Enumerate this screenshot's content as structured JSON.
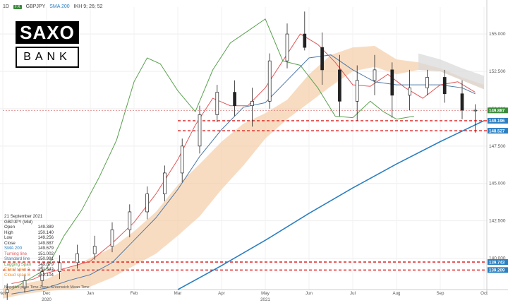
{
  "header": {
    "interval": "1D",
    "badge": "FX",
    "symbol": "GBPJPY",
    "sma_label": "SMA 200",
    "ikh_label": "IKH 9; 26; 52"
  },
  "logo": {
    "top": "SAXO",
    "bottom": "BANK"
  },
  "info": {
    "date": "21 September 2021",
    "instrument": "GBPJPY (Mid)",
    "rows": [
      {
        "label": "Open",
        "value": "149.389",
        "color": "#333333"
      },
      {
        "label": "High",
        "value": "150.140",
        "color": "#333333"
      },
      {
        "label": "Low",
        "value": "149.256",
        "color": "#333333"
      },
      {
        "label": "Close",
        "value": "149.887",
        "color": "#333333"
      },
      {
        "label": "SMA 200",
        "value": "149.679",
        "color": "#2a7fc1"
      },
      {
        "label": "Turning line",
        "value": "151.002",
        "color": "#e15759"
      },
      {
        "label": "Standard line",
        "value": "150.991",
        "color": "#4e79a7"
      },
      {
        "label": "Lagging Span",
        "value": "149.879",
        "color": "#59a14f"
      },
      {
        "label": "Cloud span A",
        "value": "151.542",
        "color": "#f28e2b"
      },
      {
        "label": "Cloud span B",
        "value": "152.104",
        "color": "#f28e2b"
      }
    ],
    "footer": "Negative price   Time Zone: Greenwich Mean Time"
  },
  "chart_data": {
    "type": "candlestick",
    "symbol": "GBPJPY",
    "x_ticks": [
      "Nov",
      "Dec",
      "Jan",
      "Feb",
      "Mar",
      "Apr",
      "May",
      "Jun",
      "Jul",
      "Aug",
      "Sep",
      "Oct"
    ],
    "year_labels": [
      {
        "after": "Dec",
        "label": "2020"
      },
      {
        "after": "May",
        "label": "2021"
      }
    ],
    "y_ticks": [
      140.0,
      142.5,
      145.0,
      147.5,
      150.0,
      152.5,
      155.0
    ],
    "y_tick_labels": [
      "140.000",
      "142.500",
      "145.000",
      "147.500",
      "150.000",
      "152.500",
      "155.000"
    ],
    "ylim": [
      137.9,
      156.8
    ],
    "tags": [
      {
        "value": 149.887,
        "label": "149.887",
        "color": "#3a8a3a"
      },
      {
        "value": 149.196,
        "label": "149.196",
        "color": "#2a7fc1"
      },
      {
        "value": 148.527,
        "label": "148.527",
        "color": "#2a7fc1"
      },
      {
        "value": 139.743,
        "label": "139.743",
        "color": "#2a7fc1"
      },
      {
        "value": 139.209,
        "label": "139.209",
        "color": "#2a7fc1"
      }
    ],
    "horizontal_lines": [
      {
        "value": 149.196,
        "from_month": 4,
        "style": "dashed",
        "color": "#e02020"
      },
      {
        "value": 148.527,
        "from_month": 4,
        "style": "dashed",
        "color": "#e02020"
      },
      {
        "value": 139.743,
        "from_month": 0,
        "style": "dashed",
        "color": "#e02020"
      },
      {
        "value": 139.209,
        "from_month": 0,
        "style": "dashed",
        "color": "#e02020"
      },
      {
        "value": 149.887,
        "from_month": 0,
        "style": "dotted",
        "color": "#e08080"
      }
    ],
    "series": [
      {
        "name": "SMA 200",
        "color": "#2a7fc1",
        "points": [
          [
            4.0,
            137.9
          ],
          [
            5,
            139.5
          ],
          [
            6,
            141.2
          ],
          [
            7,
            143.0
          ],
          [
            8,
            144.7
          ],
          [
            9,
            146.3
          ],
          [
            10,
            147.8
          ],
          [
            11,
            149.2
          ]
        ]
      },
      {
        "name": "Turning line",
        "color": "#e15759",
        "points": [
          [
            0.2,
            138.3
          ],
          [
            0.7,
            138.6
          ],
          [
            1,
            139.0
          ],
          [
            1.4,
            139.3
          ],
          [
            2,
            139.8
          ],
          [
            2.5,
            141.0
          ],
          [
            3,
            142.4
          ],
          [
            3.5,
            144.3
          ],
          [
            4,
            146.6
          ],
          [
            4.4,
            148.9
          ],
          [
            4.8,
            150.7
          ],
          [
            5.2,
            150.2
          ],
          [
            5.6,
            150.2
          ],
          [
            6,
            151.4
          ],
          [
            6.4,
            153.2
          ],
          [
            6.8,
            155.0
          ],
          [
            7.2,
            154.3
          ],
          [
            7.6,
            153.1
          ],
          [
            8,
            151.6
          ],
          [
            8.4,
            151.5
          ],
          [
            8.8,
            152.3
          ],
          [
            9.2,
            151.4
          ],
          [
            9.6,
            150.7
          ],
          [
            10,
            151.6
          ],
          [
            10.4,
            151.8
          ],
          [
            10.8,
            151.1
          ]
        ]
      },
      {
        "name": "Standard line",
        "color": "#4e79a7",
        "points": [
          [
            0.2,
            137.6
          ],
          [
            1,
            138.0
          ],
          [
            1.5,
            138.5
          ],
          [
            2,
            138.9
          ],
          [
            2.5,
            139.7
          ],
          [
            3,
            141.2
          ],
          [
            3.5,
            142.7
          ],
          [
            4,
            144.6
          ],
          [
            4.5,
            146.8
          ],
          [
            5,
            148.6
          ],
          [
            5.5,
            150.1
          ],
          [
            6,
            150.4
          ],
          [
            6.5,
            151.9
          ],
          [
            7,
            153.4
          ],
          [
            7.5,
            153.6
          ],
          [
            8,
            152.6
          ],
          [
            8.5,
            151.8
          ],
          [
            9,
            151.6
          ],
          [
            9.5,
            151.6
          ],
          [
            10,
            151.6
          ],
          [
            10.5,
            151.4
          ],
          [
            10.8,
            151.0
          ]
        ]
      },
      {
        "name": "Lagging Span",
        "color": "#59a14f",
        "points": [
          [
            0.2,
            137.9
          ],
          [
            0.6,
            138.6
          ],
          [
            1,
            139.3
          ],
          [
            1.4,
            141.5
          ],
          [
            1.8,
            143.2
          ],
          [
            2.2,
            145.4
          ],
          [
            2.6,
            147.9
          ],
          [
            3,
            151.8
          ],
          [
            3.3,
            153.4
          ],
          [
            3.6,
            153.0
          ],
          [
            4,
            151.2
          ],
          [
            4.4,
            149.8
          ],
          [
            4.8,
            152.6
          ],
          [
            5.2,
            154.4
          ],
          [
            5.6,
            155.2
          ],
          [
            6,
            156.0
          ],
          [
            6.4,
            153.2
          ],
          [
            6.8,
            152.9
          ],
          [
            7.2,
            151.4
          ],
          [
            7.6,
            149.5
          ],
          [
            8,
            149.4
          ],
          [
            8.4,
            150.5
          ],
          [
            8.7,
            149.8
          ],
          [
            9.0,
            149.3
          ],
          [
            9.4,
            149.5
          ]
        ]
      }
    ],
    "cloud": {
      "name": "Cloud",
      "color": "#f5c9a0",
      "upper": [
        [
          0,
          138.0
        ],
        [
          0.5,
          138.3
        ],
        [
          1,
          138.6
        ],
        [
          1.5,
          139.3
        ],
        [
          2,
          140.0
        ],
        [
          2.5,
          140.7
        ],
        [
          3,
          141.8
        ],
        [
          3.5,
          143.1
        ],
        [
          4,
          144.9
        ],
        [
          4.5,
          146.3
        ],
        [
          5,
          147.8
        ],
        [
          5.5,
          149.0
        ],
        [
          6,
          149.7
        ],
        [
          6.5,
          150.6
        ],
        [
          7,
          152.3
        ],
        [
          7.5,
          153.6
        ],
        [
          8,
          154.1
        ],
        [
          8.5,
          154.2
        ],
        [
          9,
          153.3
        ],
        [
          9.5,
          153.1
        ],
        [
          10,
          152.7
        ],
        [
          10.5,
          152.1
        ],
        [
          11,
          151.6
        ]
      ],
      "lower": [
        [
          0,
          137.3
        ],
        [
          0.5,
          137.6
        ],
        [
          1,
          137.8
        ],
        [
          1.5,
          137.9
        ],
        [
          2,
          138.1
        ],
        [
          2.5,
          138.7
        ],
        [
          3,
          139.5
        ],
        [
          3.5,
          140.3
        ],
        [
          4,
          141.5
        ],
        [
          4.5,
          142.8
        ],
        [
          5,
          144.6
        ],
        [
          5.5,
          146.2
        ],
        [
          6,
          148.0
        ],
        [
          6.5,
          149.3
        ],
        [
          7,
          150.4
        ],
        [
          7.5,
          151.5
        ],
        [
          8,
          152.5
        ],
        [
          8.5,
          152.8
        ],
        [
          9,
          152.3
        ],
        [
          9.5,
          152.6
        ],
        [
          10,
          152.5
        ],
        [
          10.5,
          151.9
        ],
        [
          11,
          151.3
        ]
      ]
    },
    "candles": [
      [
        0.1,
        137.7,
        138.3,
        137.2,
        137.9
      ],
      [
        0.5,
        138.0,
        138.9,
        137.7,
        138.5
      ],
      [
        0.9,
        138.5,
        139.6,
        138.1,
        139.1
      ],
      [
        1.3,
        139.1,
        140.2,
        138.6,
        139.7
      ],
      [
        1.7,
        139.7,
        140.9,
        139.3,
        140.3
      ],
      [
        2.1,
        140.3,
        141.5,
        139.9,
        140.8
      ],
      [
        2.5,
        140.8,
        142.4,
        140.4,
        141.9
      ],
      [
        2.9,
        141.9,
        143.6,
        141.4,
        143.1
      ],
      [
        3.3,
        143.1,
        144.8,
        142.6,
        144.3
      ],
      [
        3.7,
        144.3,
        146.2,
        143.8,
        145.7
      ],
      [
        4.1,
        145.7,
        148.0,
        145.1,
        147.5
      ],
      [
        4.5,
        147.5,
        150.2,
        147.0,
        149.6
      ],
      [
        4.9,
        149.6,
        151.6,
        149.1,
        151.1
      ],
      [
        5.3,
        151.1,
        151.9,
        149.5,
        150.2
      ],
      [
        5.7,
        150.2,
        151.4,
        148.8,
        150.5
      ],
      [
        6.1,
        150.5,
        153.7,
        150.0,
        153.2
      ],
      [
        6.5,
        153.2,
        155.7,
        152.7,
        155.0
      ],
      [
        6.9,
        155.0,
        156.5,
        153.9,
        154.1
      ],
      [
        7.3,
        154.1,
        155.1,
        151.6,
        152.6
      ],
      [
        7.7,
        152.6,
        153.6,
        149.5,
        150.5
      ],
      [
        8.1,
        150.5,
        152.9,
        149.2,
        151.9
      ],
      [
        8.5,
        151.9,
        153.6,
        150.9,
        152.6
      ],
      [
        8.9,
        152.6,
        153.1,
        149.4,
        150.9
      ],
      [
        9.3,
        150.9,
        152.6,
        149.9,
        151.4
      ],
      [
        9.7,
        151.4,
        152.6,
        150.9,
        152.1
      ],
      [
        10.1,
        152.1,
        152.6,
        150.4,
        151.0
      ],
      [
        10.5,
        151.0,
        151.9,
        149.3,
        149.9
      ],
      [
        10.8,
        149.9,
        150.3,
        148.4,
        149.9
      ]
    ]
  }
}
